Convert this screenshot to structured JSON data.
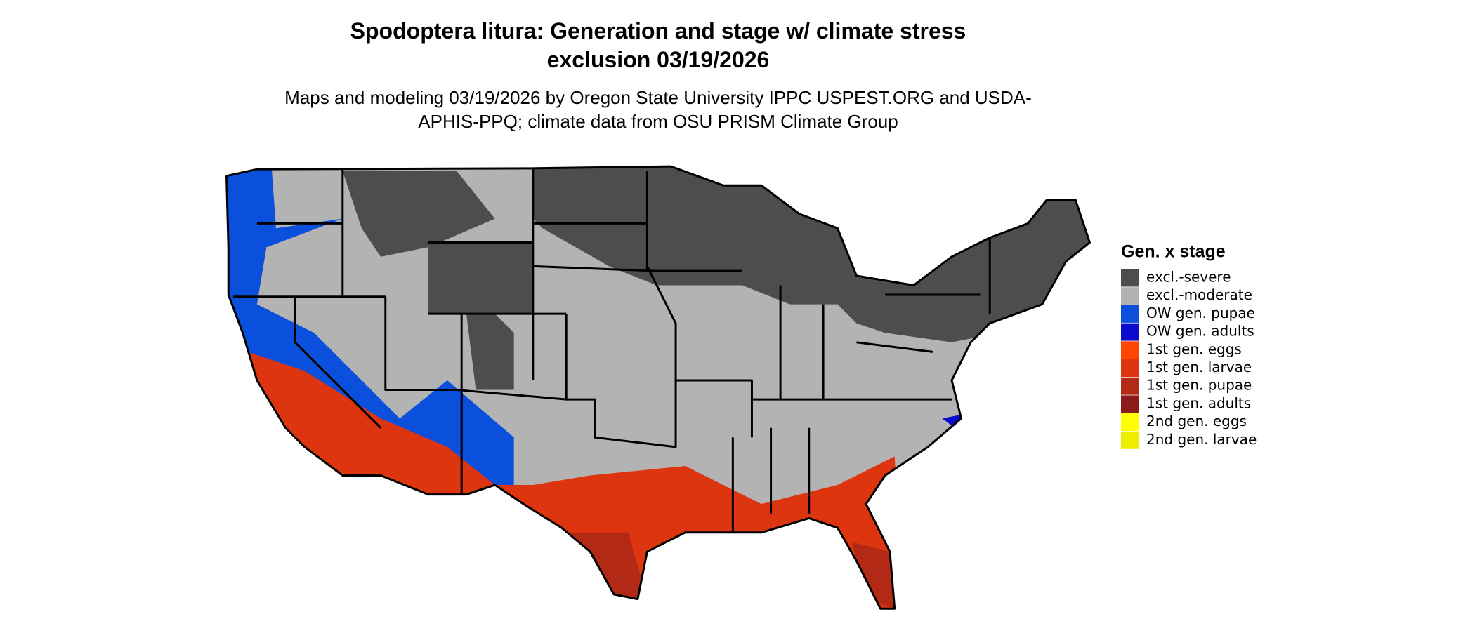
{
  "title": "Spodoptera litura: Generation and stage w/ climate stress exclusion 03/19/2026",
  "subtitle": "Maps and modeling 03/19/2026 by Oregon State University IPPC USPEST.ORG and USDA-APHIS-PPQ; climate data from OSU PRISM Climate Group",
  "legend": {
    "title": "Gen. x stage",
    "items": [
      {
        "label": "excl.-severe",
        "color": "#4d4d4d"
      },
      {
        "label": "excl.-moderate",
        "color": "#b3b3b3"
      },
      {
        "label": "OW gen. pupae",
        "color": "#0a50dc"
      },
      {
        "label": "OW gen. adults",
        "color": "#0a0acc"
      },
      {
        "label": "1st gen. eggs",
        "color": "#ff4500"
      },
      {
        "label": "1st gen. larvae",
        "color": "#dc3510"
      },
      {
        "label": "1st gen. pupae",
        "color": "#b22a15"
      },
      {
        "label": "1st gen. adults",
        "color": "#8b1a1a"
      },
      {
        "label": "2nd gen. eggs",
        "color": "#ffff00"
      },
      {
        "label": "2nd gen. larvae",
        "color": "#eeee00"
      }
    ]
  }
}
